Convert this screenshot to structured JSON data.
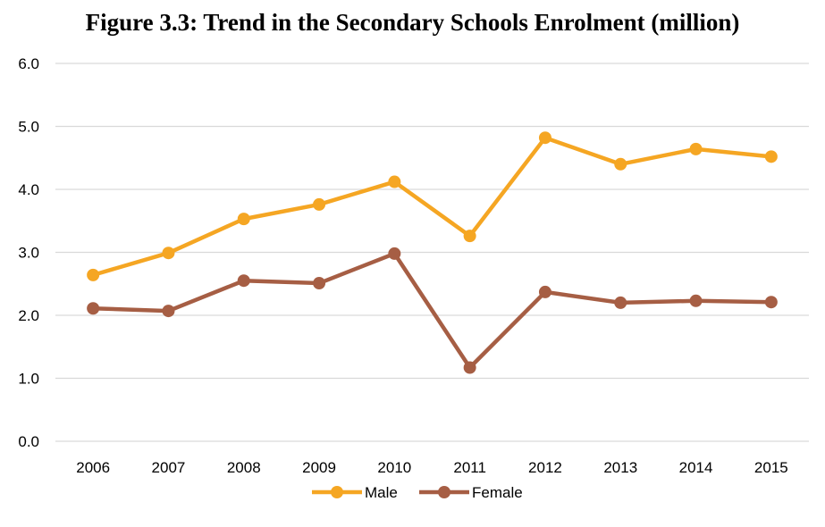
{
  "chart_data": {
    "type": "line",
    "title": "Figure 3.3: Trend in the Secondary Schools Enrolment (million)",
    "x": [
      "2006",
      "2007",
      "2008",
      "2009",
      "2010",
      "2011",
      "2012",
      "2013",
      "2014",
      "2015"
    ],
    "series": [
      {
        "name": "Male",
        "color": "#F5A623",
        "values": [
          2.64,
          2.99,
          3.53,
          3.76,
          4.12,
          3.26,
          4.82,
          4.4,
          4.64,
          4.52
        ]
      },
      {
        "name": "Female",
        "color": "#A65E44",
        "values": [
          2.11,
          2.07,
          2.55,
          2.51,
          2.98,
          1.17,
          2.37,
          2.2,
          2.23,
          2.21
        ]
      }
    ],
    "ylim": [
      0,
      6
    ],
    "yticks": [
      "0.0",
      "1.0",
      "2.0",
      "3.0",
      "4.0",
      "5.0",
      "6.0"
    ],
    "grid": true,
    "legend": "bottom-center"
  }
}
